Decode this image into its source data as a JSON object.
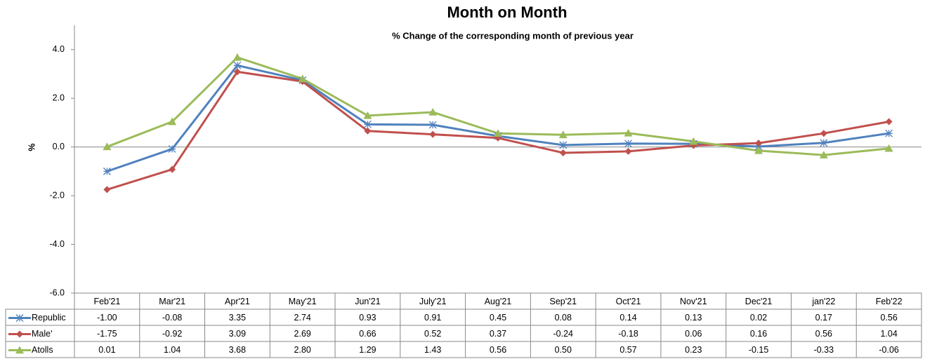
{
  "chart_data": {
    "type": "line",
    "title": "Month on Month",
    "subtitle": "% Change of the corresponding month of previous year",
    "y_label": "%",
    "categories": [
      "Feb'21",
      "Mar'21",
      "Apr'21",
      "May'21",
      "Jun'21",
      "July'21",
      "Aug'21",
      "Sep'21",
      "Oct'21",
      "Nov'21",
      "Dec'21",
      "jan'22",
      "Feb'22"
    ],
    "series": [
      {
        "name": "Republic",
        "color": "#4f81bd",
        "marker": "star",
        "values": [
          -1.0,
          -0.08,
          3.35,
          2.74,
          0.93,
          0.91,
          0.45,
          0.08,
          0.14,
          0.13,
          0.02,
          0.17,
          0.56
        ],
        "value_labels": [
          "-1.00",
          "-0.08",
          "3.35",
          "2.74",
          "0.93",
          "0.91",
          "0.45",
          "0.08",
          "0.14",
          "0.13",
          "0.02",
          "0.17",
          "0.56"
        ]
      },
      {
        "name": "Male'",
        "color": "#c0504d",
        "marker": "diamond",
        "values": [
          -1.75,
          -0.92,
          3.09,
          2.69,
          0.66,
          0.52,
          0.37,
          -0.24,
          -0.18,
          0.06,
          0.16,
          0.56,
          1.04
        ],
        "value_labels": [
          "-1.75",
          "-0.92",
          "3.09",
          "2.69",
          "0.66",
          "0.52",
          "0.37",
          "-0.24",
          "-0.18",
          "0.06",
          "0.16",
          "0.56",
          "1.04"
        ]
      },
      {
        "name": "Atolls",
        "color": "#9bbb59",
        "marker": "triangle",
        "values": [
          0.01,
          1.04,
          3.68,
          2.8,
          1.29,
          1.43,
          0.56,
          0.5,
          0.57,
          0.23,
          -0.15,
          -0.33,
          -0.06
        ],
        "value_labels": [
          "0.01",
          "1.04",
          "3.68",
          "2.80",
          "1.29",
          "1.43",
          "0.56",
          "0.50",
          "0.57",
          "0.23",
          "-0.15",
          "-0.33",
          "-0.06"
        ]
      }
    ],
    "ylim": [
      -6,
      5
    ],
    "yticks": [
      {
        "value": -6,
        "label": "-6.0"
      },
      {
        "value": -4,
        "label": "-4.0"
      },
      {
        "value": -2,
        "label": "-2.0"
      },
      {
        "value": 0,
        "label": "0.0"
      },
      {
        "value": 2,
        "label": "2.0"
      },
      {
        "value": 4,
        "label": "4.0"
      }
    ],
    "grid": false,
    "data_table": true
  }
}
